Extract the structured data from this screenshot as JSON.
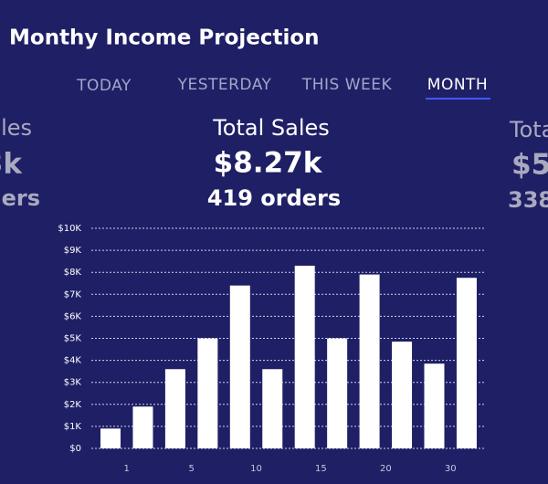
{
  "header": {
    "title": "Monthy Income Projection"
  },
  "tabs": [
    "TODAY",
    "YESTERDAY",
    "THIS WEEK",
    "MONTH"
  ],
  "cards": {
    "left": {
      "label": "les",
      "value": "3k",
      "orders": "ders"
    },
    "center": {
      "label": "Total Sales",
      "value": "$8.27k",
      "orders": "419 orders"
    },
    "right": {
      "label": "Tota",
      "value": "$5",
      "orders": "338"
    }
  },
  "chart_data": {
    "type": "bar",
    "categories": [
      null,
      null,
      null,
      null,
      null,
      null,
      null,
      null,
      null,
      null,
      null,
      null
    ],
    "values": [
      900,
      1900,
      3600,
      5000,
      7400,
      3600,
      8300,
      5000,
      7900,
      4850,
      3850,
      7750
    ],
    "color": "#ffffff",
    "xtick_labels": [
      "1",
      "5",
      "10",
      "15",
      "20",
      "30"
    ],
    "ylim": [
      0,
      10000
    ],
    "yticks": [
      {
        "value": 0,
        "label": "$0"
      },
      {
        "value": 1000,
        "label": "$1K"
      },
      {
        "value": 2000,
        "label": "$2K"
      },
      {
        "value": 3000,
        "label": "$3K"
      },
      {
        "value": 4000,
        "label": "$4K"
      },
      {
        "value": 5000,
        "label": "$5K"
      },
      {
        "value": 6000,
        "label": "$6K"
      },
      {
        "value": 7000,
        "label": "$7K"
      },
      {
        "value": 8000,
        "label": "$8K"
      },
      {
        "value": 9000,
        "label": "$9K"
      },
      {
        "value": 10000,
        "label": "$10K"
      }
    ],
    "grid": true
  }
}
